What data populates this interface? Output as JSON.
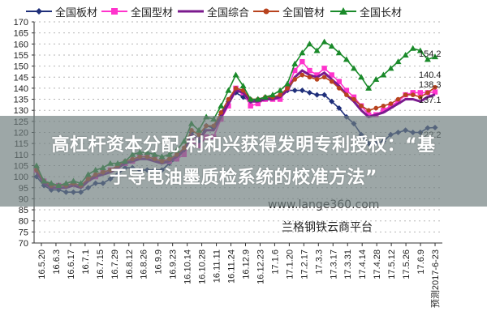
{
  "chart_data": {
    "type": "line",
    "title": "",
    "xlabel": "",
    "ylabel": "",
    "ylim": [
      70,
      170
    ],
    "yticks": [
      70,
      75,
      80,
      85,
      90,
      95,
      100,
      105,
      110,
      115,
      120,
      125,
      130,
      135,
      140,
      145,
      150,
      155,
      160,
      165,
      170
    ],
    "grid": "horizontal dotted",
    "legend_position": "top",
    "categories": [
      "16.5.20",
      "16.6.3",
      "16.6.17",
      "16.7.1",
      "16.7.15",
      "16.7.29",
      "16.8.12",
      "16.8.26",
      "16.9.9",
      "16.9.23",
      "16.10.14",
      "16.10.28",
      "16.11.11",
      "16.11.24",
      "16.12.9",
      "16.12.23",
      "17.1.6",
      "17.1.20",
      "17.2.17",
      "17.3.3",
      "17.3.17",
      "17.3.31",
      "17.4.14",
      "17.4.28",
      "17.5.12",
      "17.5.26",
      "17.6.9",
      "预测2017-6-23"
    ],
    "x_weekly_points": 55,
    "series": [
      {
        "name": "全国板材",
        "color": "#1f2f7a",
        "marker": "diamond",
        "end_label": "122.2",
        "values": [
          100,
          96,
          94,
          94,
          93,
          93,
          93,
          95,
          97,
          97,
          99,
          101,
          104,
          104,
          103,
          103,
          103,
          103,
          106,
          108,
          112,
          120,
          116,
          123,
          122,
          128,
          134,
          138,
          136,
          134,
          135,
          135,
          136,
          136,
          139,
          139,
          139,
          138,
          137,
          137,
          134,
          131,
          127,
          124,
          119,
          115,
          115,
          116,
          119,
          120,
          121,
          120,
          120,
          122,
          122.2
        ]
      },
      {
        "name": "全国型材",
        "color": "#ff33cc",
        "marker": "square",
        "end_label": "138.3",
        "values": [
          103,
          98,
          96,
          96,
          96,
          97,
          96,
          99,
          100,
          102,
          103,
          104,
          106,
          107,
          109,
          109,
          108,
          107,
          107,
          108,
          110,
          116,
          114,
          118,
          118,
          126,
          132,
          140,
          138,
          132,
          133,
          135,
          135,
          135,
          140,
          148,
          152,
          148,
          146,
          149,
          146,
          143,
          139,
          136,
          132,
          128,
          128,
          130,
          132,
          134,
          137,
          138,
          138,
          138,
          138.3
        ]
      },
      {
        "name": "全国综合",
        "color": "#7b1a8e",
        "marker": "none",
        "end_label": "137.1",
        "values": [
          102,
          97,
          95,
          95,
          95,
          96,
          95,
          98,
          100,
          101,
          102,
          104,
          106,
          107,
          108,
          108,
          107,
          106,
          107,
          109,
          112,
          119,
          117,
          121,
          121,
          127,
          133,
          139,
          138,
          134,
          134,
          135,
          135,
          136,
          139,
          145,
          148,
          146,
          145,
          147,
          144,
          141,
          137,
          134,
          130,
          127,
          128,
          129,
          131,
          133,
          135,
          135,
          134,
          136,
          137.1
        ]
      },
      {
        "name": "全国管材",
        "color": "#b8431e",
        "marker": "circle",
        "end_label": "140.4",
        "values": [
          103,
          98,
          96,
          96,
          96,
          97,
          96,
          99,
          101,
          102,
          103,
          105,
          107,
          108,
          109,
          109,
          108,
          107,
          108,
          110,
          113,
          121,
          119,
          123,
          123,
          129,
          135,
          140,
          139,
          135,
          135,
          136,
          136,
          137,
          140,
          144,
          146,
          145,
          144,
          145,
          143,
          140,
          137,
          135,
          132,
          130,
          131,
          132,
          133,
          135,
          137,
          137,
          136,
          138,
          140.4
        ]
      },
      {
        "name": "全国长材",
        "color": "#1a8a2a",
        "marker": "triangle",
        "end_label": "154.2",
        "values": [
          105,
          98,
          97,
          96,
          97,
          98,
          97,
          101,
          103,
          104,
          106,
          106,
          107,
          110,
          111,
          111,
          110,
          109,
          110,
          112,
          116,
          124,
          121,
          127,
          126,
          132,
          139,
          146,
          141,
          135,
          135,
          136,
          137,
          139,
          142,
          151,
          156,
          160,
          157,
          161,
          159,
          156,
          153,
          149,
          145,
          140,
          144,
          146,
          149,
          152,
          155,
          158,
          157,
          153,
          154.2
        ]
      }
    ],
    "annotations": [
      "154.2",
      "140.4",
      "138.3",
      "137.1",
      "122.2"
    ]
  },
  "legend": {
    "items": [
      {
        "label": "全国板材",
        "color": "#1f2f7a",
        "marker": "diamond"
      },
      {
        "label": "全国型材",
        "color": "#ff33cc",
        "marker": "square"
      },
      {
        "label": "全国综合",
        "color": "#7b1a8e",
        "marker": "none"
      },
      {
        "label": "全国管材",
        "color": "#b8431e",
        "marker": "circle"
      },
      {
        "label": "全国长材",
        "color": "#1a8a2a",
        "marker": "triangle"
      }
    ]
  },
  "overlay": {
    "line1": "高杠杆资本分配 利和兴获得发明专利授权：“基",
    "line2": "于导电油墨质检系统的校准方法”"
  },
  "watermark": {
    "url": "www.lange360.com",
    "name": "兰格钢铁云商平台"
  }
}
